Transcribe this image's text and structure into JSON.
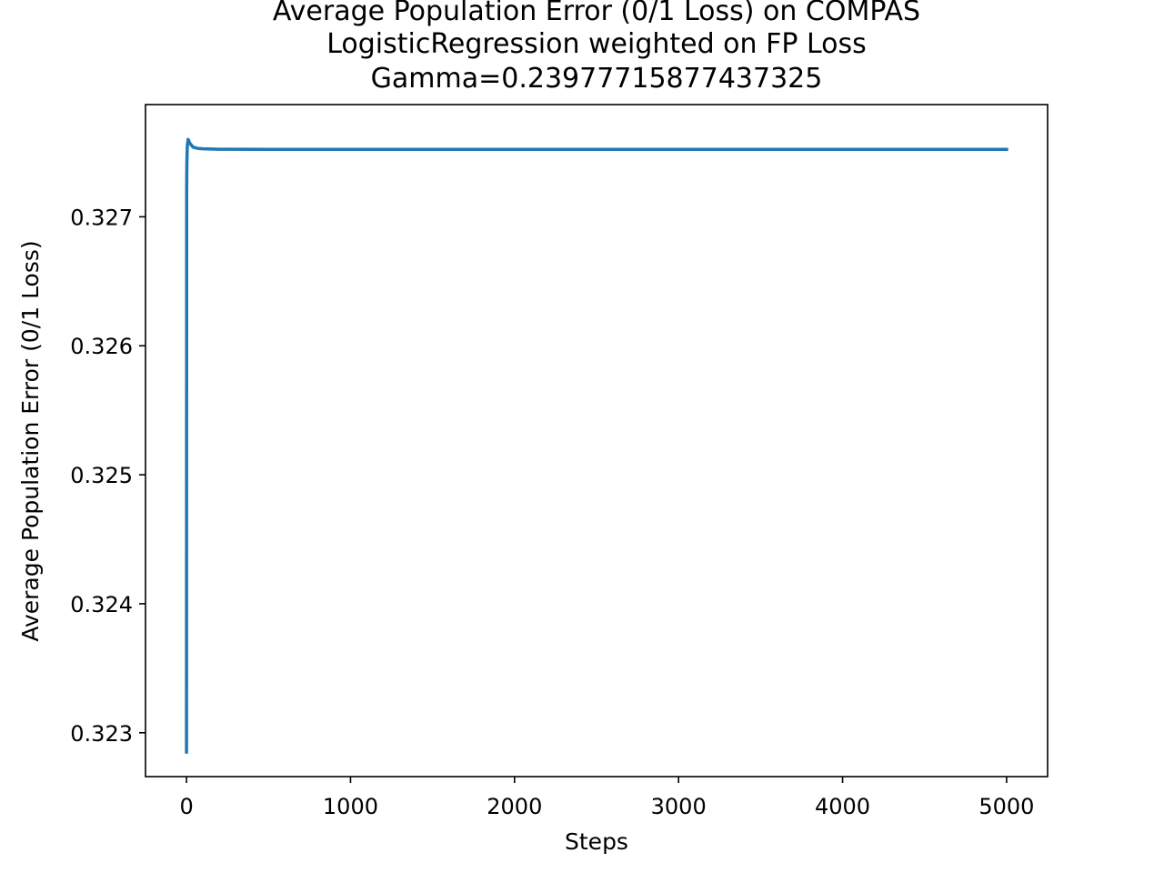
{
  "chart_data": {
    "type": "line",
    "title_lines": [
      "Average Population Error (0/1 Loss) on COMPAS",
      "LogisticRegression weighted on FP Loss",
      "Gamma=0.23977715877437325"
    ],
    "xlabel": "Steps",
    "ylabel": "Average Population Error (0/1 Loss)",
    "xlim": [
      -250,
      5250
    ],
    "ylim": [
      0.32266,
      0.32787
    ],
    "xticks": [
      0,
      1000,
      2000,
      3000,
      4000,
      5000
    ],
    "xtick_labels": [
      "0",
      "1000",
      "2000",
      "3000",
      "4000",
      "5000"
    ],
    "yticks": [
      0.323,
      0.324,
      0.325,
      0.326,
      0.327
    ],
    "ytick_labels": [
      "0.323",
      "0.324",
      "0.325",
      "0.326",
      "0.327"
    ],
    "grid": false,
    "series": [
      {
        "color": "#1f77b4",
        "x": [
          0,
          1,
          2,
          5,
          10,
          20,
          40,
          70,
          100,
          200,
          500,
          1000,
          2000,
          3000,
          4000,
          5000
        ],
        "y": [
          0.32285,
          0.3272,
          0.3274,
          0.32755,
          0.3276,
          0.32757,
          0.32754,
          0.32753,
          0.327527,
          0.327524,
          0.327523,
          0.327523,
          0.327523,
          0.327523,
          0.327523,
          0.327523
        ]
      }
    ]
  }
}
